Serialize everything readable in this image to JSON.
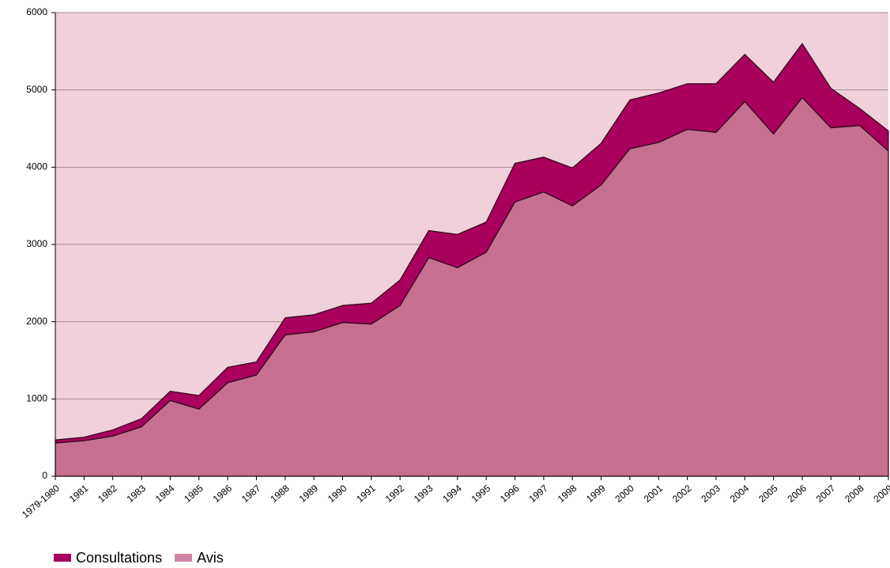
{
  "chart_data": {
    "type": "area",
    "stacked": true,
    "categories": [
      "1979-1980",
      "1981",
      "1982",
      "1983",
      "1984",
      "1985",
      "1986",
      "1987",
      "1988",
      "1989",
      "1990",
      "1991",
      "1992",
      "1993",
      "1994",
      "1995",
      "1996",
      "1997",
      "1998",
      "1999",
      "2000",
      "2001",
      "2002",
      "2003",
      "2004",
      "2005",
      "2006",
      "2007",
      "2008",
      "2009"
    ],
    "series": [
      {
        "name": "Avis",
        "color": "#c66f91",
        "legend_color": "#d184a6",
        "values": [
          430,
          460,
          520,
          640,
          980,
          870,
          1210,
          1310,
          1830,
          1870,
          1990,
          1970,
          2210,
          2830,
          2700,
          2900,
          3550,
          3680,
          3500,
          3770,
          4240,
          4320,
          4490,
          4450,
          4850,
          4430,
          4900,
          4510,
          4540,
          4210
        ]
      },
      {
        "name": "Consultations",
        "color": "#a8005c",
        "values": [
          40,
          45,
          80,
          105,
          120,
          175,
          200,
          170,
          220,
          220,
          220,
          270,
          330,
          350,
          430,
          390,
          500,
          450,
          490,
          540,
          630,
          640,
          590,
          630,
          610,
          670,
          700,
          510,
          220,
          260
        ]
      }
    ],
    "ylim": [
      0,
      6000
    ],
    "yticks": [
      0,
      1000,
      2000,
      3000,
      4000,
      5000,
      6000
    ],
    "grid": true,
    "plot_background": "#f0d0da",
    "legend": "bottom-left"
  }
}
